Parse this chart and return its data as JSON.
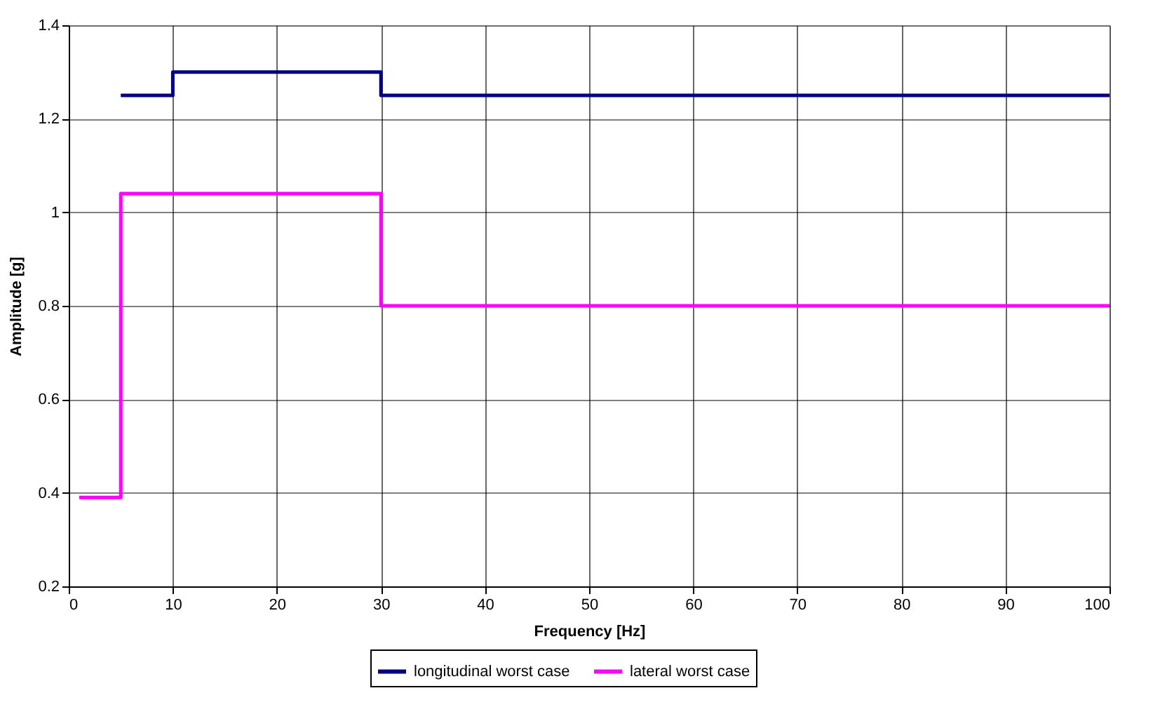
{
  "chart_data": {
    "type": "step",
    "xlabel": "Frequency [Hz]",
    "ylabel": "Amplitude [g]",
    "xlim": [
      0,
      100
    ],
    "xticks": [
      0,
      10,
      20,
      30,
      40,
      50,
      60,
      70,
      80,
      90,
      100
    ],
    "ylim": [
      0.2,
      1.4
    ],
    "yticks": [
      0.2,
      0.4,
      0.6,
      0.8,
      1,
      1.2,
      1.4
    ],
    "grid": true,
    "legend": "bottom",
    "marker": "none",
    "line_style": "solid",
    "series": [
      {
        "name": "longitudinal worst case",
        "color": "#000080",
        "x": [
          5,
          10,
          30,
          100
        ],
        "values": [
          1.25,
          1.3,
          1.25,
          1.25
        ]
      },
      {
        "name": "lateral worst case",
        "color": "#ff00ff",
        "x": [
          1,
          5,
          30,
          100
        ],
        "values": [
          0.39,
          1.04,
          0.8,
          0.8
        ]
      }
    ]
  }
}
